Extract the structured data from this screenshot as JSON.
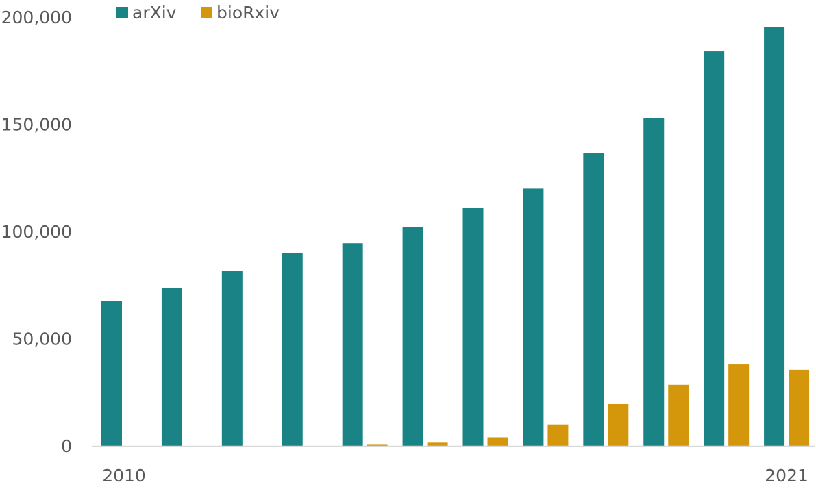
{
  "chart_data": {
    "type": "bar",
    "categories": [
      "2010",
      "2011",
      "2012",
      "2013",
      "2014",
      "2015",
      "2016",
      "2017",
      "2018",
      "2019",
      "2020",
      "2021"
    ],
    "series": [
      {
        "name": "arXiv",
        "color": "#1a8385",
        "values": [
          67500,
          73500,
          81500,
          90000,
          94500,
          102000,
          111000,
          120000,
          136500,
          153000,
          184000,
          195500
        ]
      },
      {
        "name": "bioRxiv",
        "color": "#d4960a",
        "values": [
          0,
          0,
          0,
          0,
          500,
          1500,
          4000,
          10000,
          19500,
          28500,
          38000,
          35500
        ]
      }
    ],
    "ylim": [
      0,
      200000
    ],
    "yticks": [
      0,
      50000,
      100000,
      150000,
      200000
    ],
    "ytick_labels": [
      "0",
      "50,000",
      "100,000",
      "150,000",
      "200,000"
    ],
    "xtick_labels": [
      "2010",
      "",
      "",
      "",
      "",
      "",
      "",
      "",
      "",
      "",
      "",
      "2021"
    ],
    "legend_position": "top-left",
    "grid": false,
    "axis_color": "#d9d9d9",
    "text_color": "#595959"
  }
}
